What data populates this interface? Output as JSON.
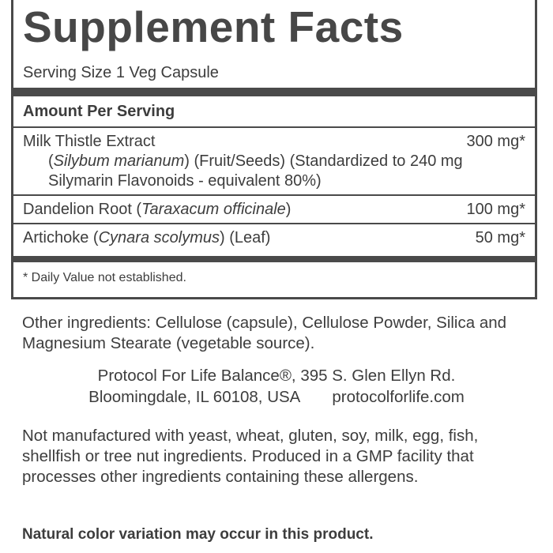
{
  "panel": {
    "title": "Supplement Facts",
    "serving_size": "Serving Size 1 Veg Capsule",
    "amount_header": "Amount Per Serving",
    "rows": [
      {
        "segments": [
          {
            "text": "Milk Thistle Extract"
          }
        ],
        "amount": "300 mg*",
        "detail": [
          {
            "text": "("
          },
          {
            "text": "Silybum marianum",
            "italic": true
          },
          {
            "text": ") (Fruit/Seeds) (Standardized to 240 mg Silymarin Flavonoids - equivalent 80%)"
          }
        ]
      },
      {
        "segments": [
          {
            "text": "Dandelion Root ("
          },
          {
            "text": "Taraxacum officinale",
            "italic": true
          },
          {
            "text": ")"
          }
        ],
        "amount": "100 mg*"
      },
      {
        "segments": [
          {
            "text": "Artichoke ("
          },
          {
            "text": "Cynara scolymus",
            "italic": true
          },
          {
            "text": ") (Leaf)"
          }
        ],
        "amount": "50 mg*"
      }
    ],
    "footnote": "* Daily Value not established."
  },
  "other_ingredients": "Other ingredients: Cellulose (capsule), Cellulose Powder, Silica and Magnesium Stearate (vegetable source).",
  "address": {
    "line1": "Protocol For Life Balance®, 395 S. Glen Ellyn Rd.",
    "line2": "Bloomingdale, IL 60108, USA",
    "website": "protocolforlife.com"
  },
  "allergen_note": "Not manufactured with yeast, wheat, gluten, soy, milk, egg, fish, shellfish or tree nut ingredients. Produced in a GMP facility that processes other ingredients containing these allergens.",
  "color_note": "Natural color variation may occur in this product."
}
